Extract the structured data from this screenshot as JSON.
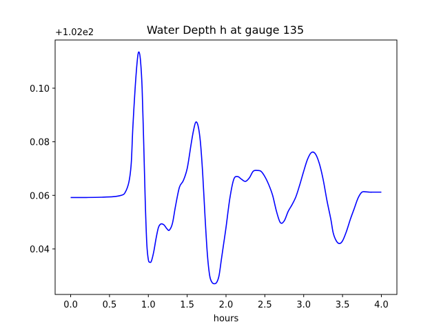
{
  "chart_data": {
    "type": "line",
    "title": "Water Depth h at gauge 135",
    "xlabel": "hours",
    "ylabel": "",
    "y_offset_label": "+1.02e2",
    "xlim": [
      -0.2,
      4.2
    ],
    "ylim": [
      0.023,
      0.118
    ],
    "grid": false,
    "x_ticks": [
      0.0,
      0.5,
      1.0,
      1.5,
      2.0,
      2.5,
      3.0,
      3.5,
      4.0
    ],
    "x_tick_labels": [
      "0.0",
      "0.5",
      "1.0",
      "1.5",
      "2.0",
      "2.5",
      "3.0",
      "3.5",
      "4.0"
    ],
    "y_ticks": [
      0.04,
      0.06,
      0.08,
      0.1
    ],
    "y_tick_labels": [
      "0.04",
      "0.06",
      "0.08",
      "0.10"
    ],
    "series": [
      {
        "color": "#0000ff",
        "x": [
          0.0,
          0.2,
          0.4,
          0.55,
          0.65,
          0.7,
          0.75,
          0.78,
          0.8,
          0.83,
          0.86,
          0.88,
          0.9,
          0.92,
          0.94,
          0.96,
          0.98,
          1.0,
          1.02,
          1.04,
          1.07,
          1.1,
          1.13,
          1.16,
          1.2,
          1.24,
          1.27,
          1.31,
          1.35,
          1.4,
          1.45,
          1.5,
          1.55,
          1.58,
          1.61,
          1.64,
          1.67,
          1.7,
          1.73,
          1.76,
          1.79,
          1.82,
          1.85,
          1.88,
          1.91,
          1.94,
          1.97,
          2.0,
          2.05,
          2.1,
          2.15,
          2.2,
          2.25,
          2.3,
          2.35,
          2.4,
          2.45,
          2.5,
          2.55,
          2.6,
          2.65,
          2.7,
          2.75,
          2.8,
          2.85,
          2.9,
          2.95,
          3.0,
          3.05,
          3.1,
          3.15,
          3.2,
          3.25,
          3.3,
          3.35,
          3.38,
          3.42,
          3.46,
          3.5,
          3.55,
          3.6,
          3.65,
          3.7,
          3.75,
          3.8,
          3.85,
          3.9,
          3.95,
          4.0
        ],
        "y": [
          0.0592,
          0.0592,
          0.0593,
          0.0595,
          0.06,
          0.061,
          0.065,
          0.072,
          0.085,
          0.1,
          0.111,
          0.1135,
          0.11,
          0.1,
          0.08,
          0.058,
          0.042,
          0.036,
          0.035,
          0.0355,
          0.039,
          0.044,
          0.048,
          0.0493,
          0.049,
          0.0475,
          0.047,
          0.0495,
          0.056,
          0.063,
          0.0655,
          0.07,
          0.079,
          0.084,
          0.0873,
          0.086,
          0.08,
          0.068,
          0.052,
          0.038,
          0.03,
          0.0275,
          0.027,
          0.0275,
          0.03,
          0.036,
          0.042,
          0.048,
          0.059,
          0.066,
          0.067,
          0.066,
          0.0652,
          0.0665,
          0.069,
          0.0693,
          0.069,
          0.067,
          0.064,
          0.06,
          0.054,
          0.0498,
          0.0505,
          0.054,
          0.0565,
          0.0595,
          0.064,
          0.069,
          0.0735,
          0.076,
          0.0755,
          0.072,
          0.066,
          0.058,
          0.051,
          0.046,
          0.043,
          0.042,
          0.043,
          0.0465,
          0.051,
          0.055,
          0.059,
          0.0612,
          0.0613,
          0.0612,
          0.0612,
          0.0612,
          0.0612
        ]
      }
    ]
  }
}
